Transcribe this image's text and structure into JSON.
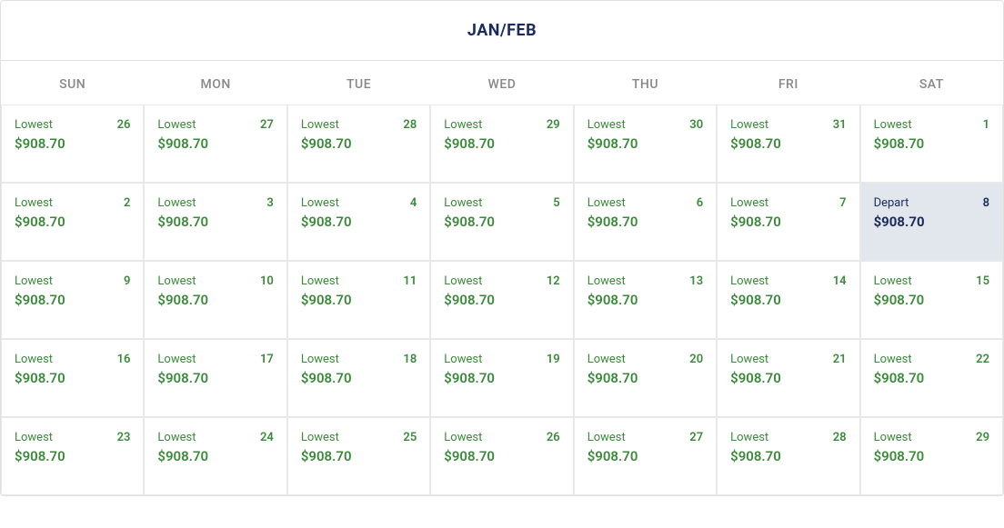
{
  "monthTitle": "JAN/FEB",
  "weekdays": [
    "SUN",
    "MON",
    "TUE",
    "WED",
    "THU",
    "FRI",
    "SAT"
  ],
  "colors": {
    "title": "#1a2b5c",
    "weekday": "#888888",
    "normalText": "#3a8a3a",
    "selectedBg": "#e2e6ed",
    "selectedText": "#1a2b5c",
    "border": "#e8e8e8"
  },
  "days": [
    {
      "label": "Lowest",
      "day": "26",
      "price": "$908.70",
      "selected": false
    },
    {
      "label": "Lowest",
      "day": "27",
      "price": "$908.70",
      "selected": false
    },
    {
      "label": "Lowest",
      "day": "28",
      "price": "$908.70",
      "selected": false
    },
    {
      "label": "Lowest",
      "day": "29",
      "price": "$908.70",
      "selected": false
    },
    {
      "label": "Lowest",
      "day": "30",
      "price": "$908.70",
      "selected": false
    },
    {
      "label": "Lowest",
      "day": "31",
      "price": "$908.70",
      "selected": false
    },
    {
      "label": "Lowest",
      "day": "1",
      "price": "$908.70",
      "selected": false
    },
    {
      "label": "Lowest",
      "day": "2",
      "price": "$908.70",
      "selected": false
    },
    {
      "label": "Lowest",
      "day": "3",
      "price": "$908.70",
      "selected": false
    },
    {
      "label": "Lowest",
      "day": "4",
      "price": "$908.70",
      "selected": false
    },
    {
      "label": "Lowest",
      "day": "5",
      "price": "$908.70",
      "selected": false
    },
    {
      "label": "Lowest",
      "day": "6",
      "price": "$908.70",
      "selected": false
    },
    {
      "label": "Lowest",
      "day": "7",
      "price": "$908.70",
      "selected": false
    },
    {
      "label": "Depart",
      "day": "8",
      "price": "$908.70",
      "selected": true
    },
    {
      "label": "Lowest",
      "day": "9",
      "price": "$908.70",
      "selected": false
    },
    {
      "label": "Lowest",
      "day": "10",
      "price": "$908.70",
      "selected": false
    },
    {
      "label": "Lowest",
      "day": "11",
      "price": "$908.70",
      "selected": false
    },
    {
      "label": "Lowest",
      "day": "12",
      "price": "$908.70",
      "selected": false
    },
    {
      "label": "Lowest",
      "day": "13",
      "price": "$908.70",
      "selected": false
    },
    {
      "label": "Lowest",
      "day": "14",
      "price": "$908.70",
      "selected": false
    },
    {
      "label": "Lowest",
      "day": "15",
      "price": "$908.70",
      "selected": false
    },
    {
      "label": "Lowest",
      "day": "16",
      "price": "$908.70",
      "selected": false
    },
    {
      "label": "Lowest",
      "day": "17",
      "price": "$908.70",
      "selected": false
    },
    {
      "label": "Lowest",
      "day": "18",
      "price": "$908.70",
      "selected": false
    },
    {
      "label": "Lowest",
      "day": "19",
      "price": "$908.70",
      "selected": false
    },
    {
      "label": "Lowest",
      "day": "20",
      "price": "$908.70",
      "selected": false
    },
    {
      "label": "Lowest",
      "day": "21",
      "price": "$908.70",
      "selected": false
    },
    {
      "label": "Lowest",
      "day": "22",
      "price": "$908.70",
      "selected": false
    },
    {
      "label": "Lowest",
      "day": "23",
      "price": "$908.70",
      "selected": false
    },
    {
      "label": "Lowest",
      "day": "24",
      "price": "$908.70",
      "selected": false
    },
    {
      "label": "Lowest",
      "day": "25",
      "price": "$908.70",
      "selected": false
    },
    {
      "label": "Lowest",
      "day": "26",
      "price": "$908.70",
      "selected": false
    },
    {
      "label": "Lowest",
      "day": "27",
      "price": "$908.70",
      "selected": false
    },
    {
      "label": "Lowest",
      "day": "28",
      "price": "$908.70",
      "selected": false
    },
    {
      "label": "Lowest",
      "day": "29",
      "price": "$908.70",
      "selected": false
    }
  ]
}
